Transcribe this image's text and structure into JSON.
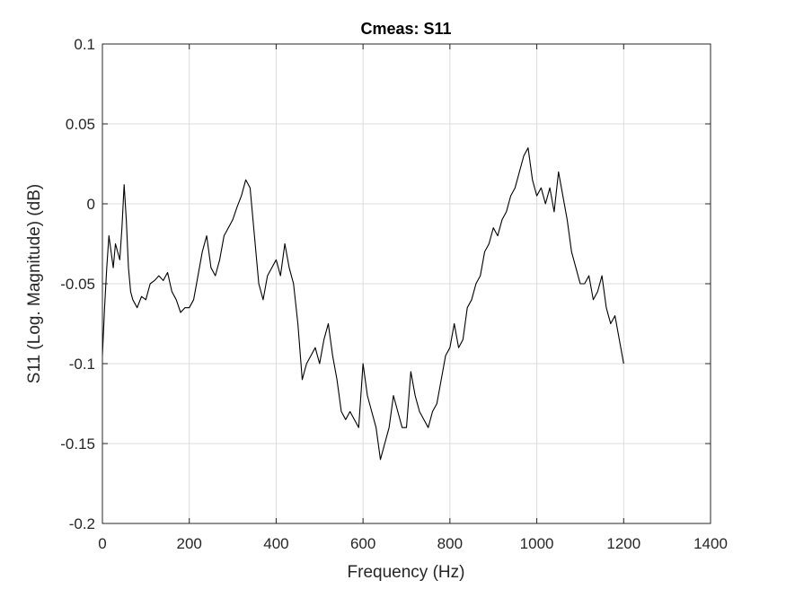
{
  "chart_data": {
    "type": "line",
    "title": "Cmeas: S11",
    "xlabel": "Frequency (Hz)",
    "ylabel": "S11 (Log. Magnitude) (dB)",
    "xlim": [
      0,
      1400
    ],
    "ylim": [
      -0.2,
      0.1
    ],
    "grid": true,
    "legend": "none",
    "x_ticks": [
      0,
      200,
      400,
      600,
      800,
      1000,
      1200,
      1400
    ],
    "x_tick_labels": [
      "0",
      "200",
      "400",
      "600",
      "800",
      "1000",
      "1200",
      "1400"
    ],
    "y_ticks": [
      -0.2,
      -0.15,
      -0.1,
      -0.05,
      0,
      0.05,
      0.1
    ],
    "y_tick_labels": [
      "-0.2",
      "-0.15",
      "-0.1",
      "-0.05",
      "0",
      "0.05",
      "0.1"
    ],
    "colors": {
      "series": "#000000",
      "grid": "#dcdcdc",
      "axis": "#262626"
    },
    "series": [
      {
        "x": [
          0,
          5,
          10,
          15,
          20,
          25,
          30,
          35,
          40,
          45,
          50,
          55,
          60,
          65,
          70,
          80,
          90,
          100,
          110,
          120,
          130,
          140,
          150,
          160,
          170,
          180,
          190,
          200,
          210,
          220,
          230,
          240,
          250,
          260,
          270,
          280,
          290,
          300,
          310,
          320,
          330,
          340,
          350,
          360,
          370,
          380,
          390,
          400,
          410,
          420,
          430,
          440,
          450,
          460,
          470,
          480,
          490,
          500,
          510,
          520,
          530,
          540,
          550,
          560,
          570,
          580,
          590,
          600,
          610,
          620,
          630,
          640,
          650,
          660,
          670,
          680,
          690,
          700,
          710,
          720,
          730,
          740,
          750,
          760,
          770,
          780,
          790,
          800,
          810,
          820,
          830,
          840,
          850,
          860,
          870,
          880,
          890,
          900,
          910,
          920,
          930,
          940,
          950,
          960,
          970,
          980,
          990,
          1000,
          1010,
          1020,
          1030,
          1040,
          1050,
          1060,
          1070,
          1080,
          1090,
          1100,
          1110,
          1120,
          1130,
          1140,
          1150,
          1160,
          1170,
          1180,
          1190,
          1200
        ],
        "y": [
          -0.095,
          -0.065,
          -0.04,
          -0.02,
          -0.03,
          -0.04,
          -0.025,
          -0.03,
          -0.035,
          -0.015,
          0.012,
          -0.01,
          -0.04,
          -0.055,
          -0.06,
          -0.065,
          -0.058,
          -0.06,
          -0.05,
          -0.048,
          -0.045,
          -0.048,
          -0.043,
          -0.055,
          -0.06,
          -0.068,
          -0.065,
          -0.065,
          -0.06,
          -0.045,
          -0.03,
          -0.02,
          -0.04,
          -0.045,
          -0.035,
          -0.02,
          -0.015,
          -0.01,
          -0.002,
          0.005,
          0.015,
          0.01,
          -0.02,
          -0.05,
          -0.06,
          -0.045,
          -0.04,
          -0.035,
          -0.045,
          -0.025,
          -0.04,
          -0.05,
          -0.075,
          -0.11,
          -0.1,
          -0.095,
          -0.09,
          -0.1,
          -0.085,
          -0.075,
          -0.095,
          -0.11,
          -0.13,
          -0.135,
          -0.13,
          -0.135,
          -0.14,
          -0.1,
          -0.12,
          -0.13,
          -0.14,
          -0.16,
          -0.15,
          -0.14,
          -0.12,
          -0.13,
          -0.14,
          -0.14,
          -0.105,
          -0.12,
          -0.13,
          -0.135,
          -0.14,
          -0.13,
          -0.125,
          -0.11,
          -0.095,
          -0.09,
          -0.075,
          -0.09,
          -0.085,
          -0.065,
          -0.06,
          -0.05,
          -0.045,
          -0.03,
          -0.025,
          -0.015,
          -0.02,
          -0.01,
          -0.005,
          0.005,
          0.01,
          0.02,
          0.03,
          0.035,
          0.015,
          0.005,
          0.01,
          0.0,
          0.01,
          -0.005,
          0.02,
          0.005,
          -0.01,
          -0.03,
          -0.04,
          -0.05,
          -0.05,
          -0.045,
          -0.06,
          -0.055,
          -0.045,
          -0.065,
          -0.075,
          -0.07,
          -0.085,
          -0.1
        ]
      }
    ]
  }
}
